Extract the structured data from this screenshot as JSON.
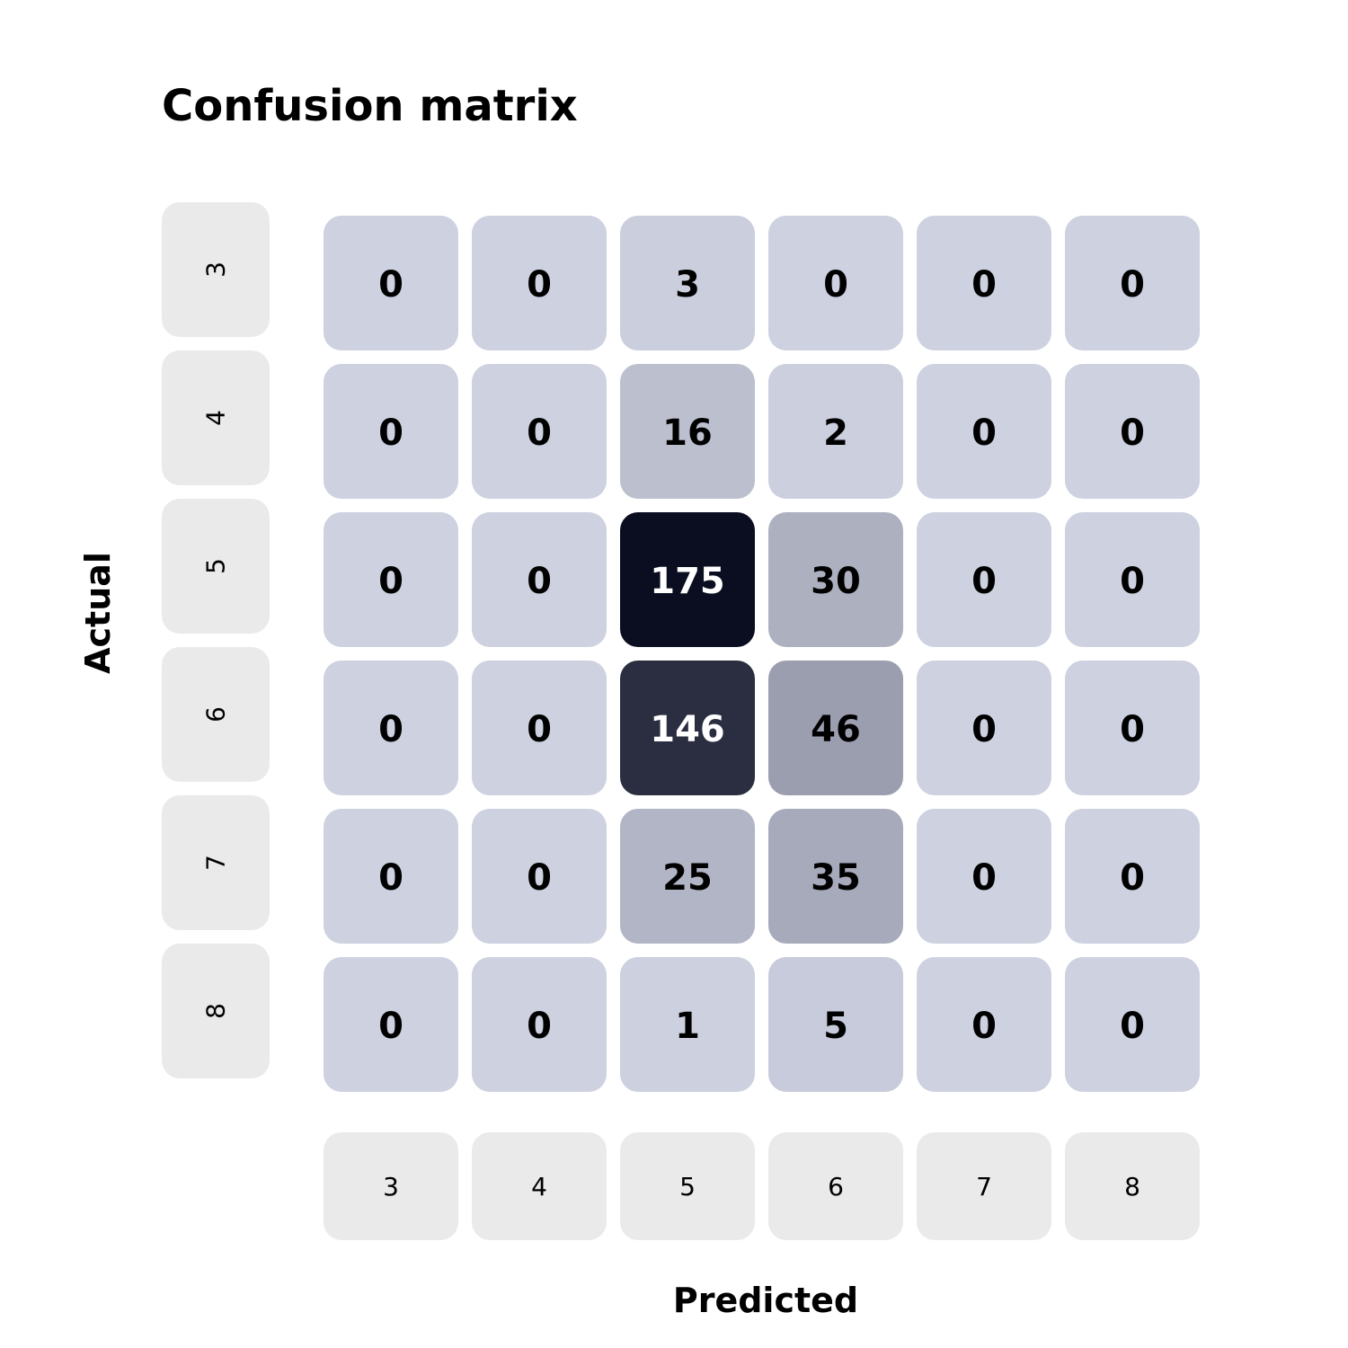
{
  "chart_data": {
    "type": "heatmap",
    "title": "Confusion matrix",
    "xlabel": "Predicted",
    "ylabel": "Actual",
    "x_categories": [
      "3",
      "4",
      "5",
      "6",
      "7",
      "8"
    ],
    "y_categories": [
      "3",
      "4",
      "5",
      "6",
      "7",
      "8"
    ],
    "values": [
      [
        0,
        0,
        3,
        0,
        0,
        0
      ],
      [
        0,
        0,
        16,
        2,
        0,
        0
      ],
      [
        0,
        0,
        175,
        30,
        0,
        0
      ],
      [
        0,
        0,
        146,
        46,
        0,
        0
      ],
      [
        0,
        0,
        25,
        35,
        0,
        0
      ],
      [
        0,
        0,
        1,
        5,
        0,
        0
      ]
    ],
    "value_range": [
      0,
      175
    ],
    "colors": {
      "low": "#cdd1e0",
      "high": "#0a0e20",
      "tick_box": "#eaeaea",
      "text_dark": "#000000",
      "text_light": "#ffffff"
    },
    "legend": "none",
    "grid": false
  }
}
